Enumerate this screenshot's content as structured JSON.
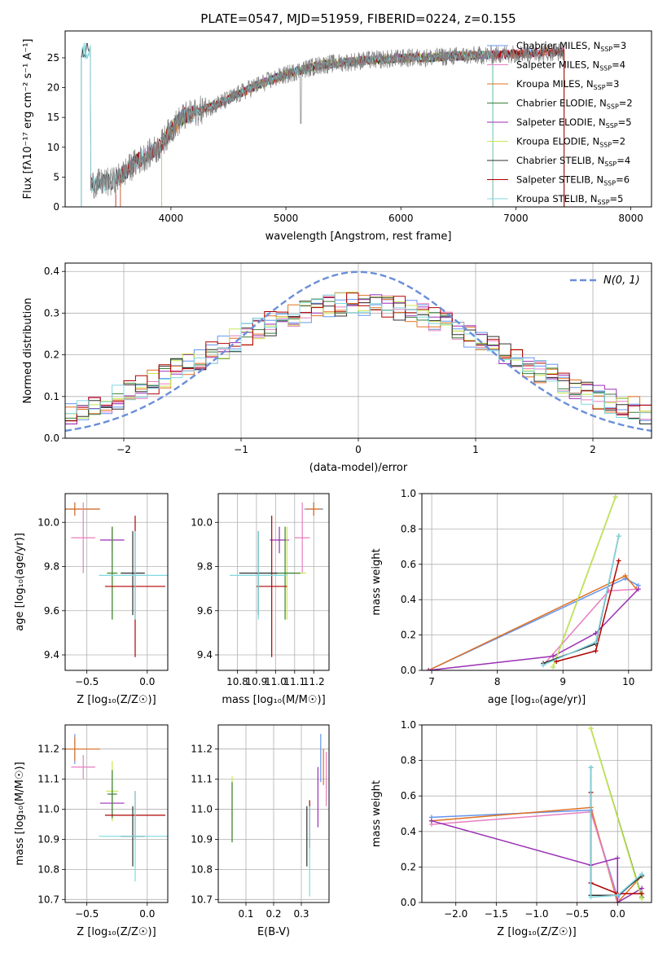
{
  "figure_title": "PLATE=0547, MJD=51959, FIBERID=0224, z=0.155",
  "colors": {
    "cm": "#6495ed",
    "sm": "#e87ec0",
    "km": "#e07020",
    "ce": "#3a7d3a",
    "se": "#9b2fb5",
    "ke": "#c8e850",
    "cs": "#303030",
    "ss": "#b00000",
    "ks": "#80d8e0",
    "spec": "#808080",
    "normal": "#6a8fd8",
    "grid": "#b0b0b0"
  },
  "chart_data": [
    {
      "id": "spectrum",
      "type": "line",
      "title": "PLATE=0547, MJD=51959, FIBERID=0224, z=0.155",
      "xlabel": "wavelength [Angstrom, rest frame]",
      "ylabel": "Flux [fλ10⁻¹⁷ erg cm⁻² s⁻¹ A⁻¹]",
      "xlim": [
        3080,
        8180
      ],
      "ylim": [
        0,
        29.5
      ],
      "xticks": [
        4000,
        5000,
        6000,
        7000,
        8000
      ],
      "yticks": [
        0,
        5,
        10,
        15,
        20,
        25
      ],
      "grid": false,
      "legend_position": "right",
      "data_range": [
        3300,
        7420
      ],
      "legend": [
        {
          "key": "cm",
          "label": "Chabrier MILES, N",
          "sub": "SSP",
          "suffix": "=3"
        },
        {
          "key": "sm",
          "label": "Salpeter MILES, N",
          "sub": "SSP",
          "suffix": "=4"
        },
        {
          "key": "km",
          "label": "Kroupa MILES, N",
          "sub": "SSP",
          "suffix": "=3"
        },
        {
          "key": "ce",
          "label": "Chabrier ELODIE, N",
          "sub": "SSP",
          "suffix": "=2"
        },
        {
          "key": "se",
          "label": "Salpeter ELODIE, N",
          "sub": "SSP",
          "suffix": "=5"
        },
        {
          "key": "ke",
          "label": "Kroupa ELODIE, N",
          "sub": "SSP",
          "suffix": "=2"
        },
        {
          "key": "cs",
          "label": "Chabrier STELIB, N",
          "sub": "SSP",
          "suffix": "=4"
        },
        {
          "key": "ss",
          "label": "Salpeter STELIB, N",
          "sub": "SSP",
          "suffix": "=6"
        },
        {
          "key": "ks",
          "label": "Kroupa STELIB, N",
          "sub": "SSP",
          "suffix": "=5"
        }
      ],
      "spectrum_anchors": [
        [
          3300,
          3.8
        ],
        [
          3500,
          4.2
        ],
        [
          3700,
          7.5
        ],
        [
          3900,
          10
        ],
        [
          4000,
          13
        ],
        [
          4100,
          15
        ],
        [
          4300,
          16.5
        ],
        [
          4500,
          18
        ],
        [
          4700,
          20
        ],
        [
          4900,
          21.5
        ],
        [
          5100,
          22.8
        ],
        [
          5300,
          23.8
        ],
        [
          5500,
          24.2
        ],
        [
          5700,
          24.6
        ],
        [
          5900,
          24.8
        ],
        [
          6100,
          25
        ],
        [
          6300,
          25.1
        ],
        [
          6500,
          25.3
        ],
        [
          6700,
          25.4
        ],
        [
          6900,
          25.6
        ],
        [
          7100,
          25.8
        ],
        [
          7300,
          26
        ],
        [
          7420,
          26
        ]
      ],
      "model_starts": {
        "cm": 3560,
        "sm": 3560,
        "km": 3560,
        "ce": 3920,
        "se": 3920,
        "ke": 3920,
        "cs": 3220,
        "ss": 3520,
        "ks": 3220
      },
      "model_ends": {
        "cm": 7420,
        "sm": 7420,
        "km": 7420,
        "ce": 6800,
        "se": 6800,
        "ke": 6800,
        "cs": 7420,
        "ss": 7420,
        "ks": 6800
      }
    },
    {
      "id": "residual_hist",
      "type": "histogram",
      "xlabel": "(data-model)/error",
      "ylabel": "Normed distribution",
      "xlim": [
        -2.5,
        2.5
      ],
      "ylim": [
        0,
        0.42
      ],
      "xticks": [
        -2,
        -1,
        0,
        1,
        2
      ],
      "yticks": [
        0.0,
        0.1,
        0.2,
        0.3,
        0.4
      ],
      "grid": true,
      "bin_width": 0.1,
      "legend": [
        {
          "key": "normal",
          "label": "N(0, 1)"
        }
      ],
      "legend_position": "top-right"
    },
    {
      "id": "age_vs_Z",
      "type": "errorbar",
      "xlabel": "Z [log₁₀(Z/Z☉)]",
      "ylabel": "age  [log₁₀(age/yr)]",
      "xlim": [
        -0.68,
        0.17
      ],
      "ylim": [
        9.33,
        10.13
      ],
      "xticks": [
        -0.5,
        0.0
      ],
      "yticks": [
        9.4,
        9.6,
        9.8,
        10.0
      ],
      "grid": true,
      "points": [
        {
          "key": "cm",
          "x": -0.6,
          "y": 10.06,
          "xerr": 0.2,
          "yerr": 0.03
        },
        {
          "key": "km",
          "x": -0.6,
          "y": 10.06,
          "xerr": 0.21,
          "yerr": 0.03
        },
        {
          "key": "sm",
          "x": -0.53,
          "y": 9.93,
          "xerr": 0.1,
          "yerr": 0.16
        },
        {
          "key": "se",
          "x": -0.29,
          "y": 9.92,
          "xerr": 0.1,
          "yerr": 0.06
        },
        {
          "key": "ke",
          "x": -0.29,
          "y": 9.77,
          "xerr": 0.05,
          "yerr": 0.21
        },
        {
          "key": "ce",
          "x": -0.29,
          "y": 9.77,
          "xerr": 0.04,
          "yerr": 0.21
        },
        {
          "key": "cs",
          "x": -0.12,
          "y": 9.77,
          "xerr": 0.1,
          "yerr": 0.19
        },
        {
          "key": "ss",
          "x": -0.1,
          "y": 9.71,
          "xerr": 0.25,
          "yerr": 0.32
        },
        {
          "key": "ks",
          "x": -0.1,
          "y": 9.76,
          "xerr": 0.3,
          "yerr": 0.2
        }
      ]
    },
    {
      "id": "age_vs_mass",
      "type": "errorbar",
      "xlabel": "mass [log₁₀(M/M☉)]",
      "ylabel": "",
      "xlim": [
        10.7,
        11.28
      ],
      "ylim": [
        9.33,
        10.13
      ],
      "xticks": [
        10.8,
        10.9,
        11.0,
        11.1,
        11.2
      ],
      "yticks": [
        9.4,
        9.6,
        9.8,
        10.0
      ],
      "grid": true,
      "points": [
        {
          "key": "cm",
          "x": 11.2,
          "y": 10.06,
          "xerr": 0.05,
          "yerr": 0.03
        },
        {
          "key": "km",
          "x": 11.2,
          "y": 10.06,
          "xerr": 0.04,
          "yerr": 0.03
        },
        {
          "key": "sm",
          "x": 11.14,
          "y": 9.93,
          "xerr": 0.04,
          "yerr": 0.16
        },
        {
          "key": "se",
          "x": 11.02,
          "y": 9.92,
          "xerr": 0.05,
          "yerr": 0.06
        },
        {
          "key": "ke",
          "x": 11.06,
          "y": 9.77,
          "xerr": 0.1,
          "yerr": 0.21
        },
        {
          "key": "ce",
          "x": 11.05,
          "y": 9.77,
          "xerr": 0.08,
          "yerr": 0.21
        },
        {
          "key": "cs",
          "x": 10.91,
          "y": 9.77,
          "xerr": 0.1,
          "yerr": 0.19
        },
        {
          "key": "ss",
          "x": 10.98,
          "y": 9.71,
          "xerr": 0.08,
          "yerr": 0.32
        },
        {
          "key": "ks",
          "x": 10.91,
          "y": 9.76,
          "xerr": 0.15,
          "yerr": 0.2
        }
      ]
    },
    {
      "id": "massweight_vs_age",
      "type": "line",
      "xlabel": "age  [log₁₀(age/yr)]",
      "ylabel": "mass weight",
      "xlim": [
        6.85,
        10.35
      ],
      "ylim": [
        0,
        1.0
      ],
      "xticks": [
        7,
        8,
        9,
        10
      ],
      "yticks": [
        0.0,
        0.2,
        0.4,
        0.6,
        0.8,
        1.0
      ],
      "grid": true,
      "series": [
        {
          "key": "cm",
          "x": [
            6.95,
            9.95,
            10.15
          ],
          "y": [
            0.0,
            0.52,
            0.48
          ]
        },
        {
          "key": "km",
          "x": [
            6.95,
            9.95,
            10.12
          ],
          "y": [
            0.0,
            0.535,
            0.46
          ]
        },
        {
          "key": "sm",
          "x": [
            8.7,
            9.7,
            10.15
          ],
          "y": [
            0.03,
            0.45,
            0.46
          ]
        },
        {
          "key": "se",
          "x": [
            6.95,
            8.85,
            9.5,
            10.15
          ],
          "y": [
            0.0,
            0.08,
            0.21,
            0.46
          ]
        },
        {
          "key": "ce",
          "x": [
            8.85,
            9.8
          ],
          "y": [
            0.02,
            0.98
          ]
        },
        {
          "key": "ke",
          "x": [
            8.85,
            9.8
          ],
          "y": [
            0.02,
            0.98
          ]
        },
        {
          "key": "cs",
          "x": [
            8.7,
            9.5,
            9.85
          ],
          "y": [
            0.04,
            0.15,
            0.76
          ]
        },
        {
          "key": "ss",
          "x": [
            8.9,
            9.5,
            9.85
          ],
          "y": [
            0.05,
            0.11,
            0.62
          ]
        },
        {
          "key": "ks",
          "x": [
            8.7,
            9.5,
            9.85
          ],
          "y": [
            0.03,
            0.16,
            0.76
          ]
        }
      ]
    },
    {
      "id": "mass_vs_Z",
      "type": "errorbar",
      "xlabel": "Z [log₁₀(Z/Z☉)]",
      "ylabel": "mass [log₁₀(M/M☉)]",
      "xlim": [
        -0.68,
        0.17
      ],
      "ylim": [
        10.69,
        11.28
      ],
      "xticks": [
        -0.5,
        0.0
      ],
      "yticks": [
        10.7,
        10.8,
        10.9,
        11.0,
        11.1,
        11.2
      ],
      "grid": true,
      "points": [
        {
          "key": "cm",
          "x": -0.6,
          "y": 11.2,
          "xerr": 0.2,
          "yerr": 0.05
        },
        {
          "key": "km",
          "x": -0.6,
          "y": 11.2,
          "xerr": 0.21,
          "yerr": 0.04
        },
        {
          "key": "sm",
          "x": -0.53,
          "y": 11.14,
          "xerr": 0.1,
          "yerr": 0.04
        },
        {
          "key": "se",
          "x": -0.29,
          "y": 11.02,
          "xerr": 0.1,
          "yerr": 0.05
        },
        {
          "key": "ke",
          "x": -0.29,
          "y": 11.06,
          "xerr": 0.05,
          "yerr": 0.1
        },
        {
          "key": "ce",
          "x": -0.29,
          "y": 11.05,
          "xerr": 0.04,
          "yerr": 0.08
        },
        {
          "key": "cs",
          "x": -0.12,
          "y": 10.91,
          "xerr": 0.1,
          "yerr": 0.1
        },
        {
          "key": "ss",
          "x": -0.1,
          "y": 10.98,
          "xerr": 0.25,
          "yerr": 0.08
        },
        {
          "key": "ks",
          "x": -0.1,
          "y": 10.91,
          "xerr": 0.3,
          "yerr": 0.15
        }
      ]
    },
    {
      "id": "mass_vs_EBV",
      "type": "errorbar",
      "xlabel": "E(B-V)",
      "ylabel": "",
      "xlim": [
        0.0,
        0.4
      ],
      "ylim": [
        10.69,
        11.28
      ],
      "xticks": [
        0.1,
        0.2,
        0.3
      ],
      "yticks": [
        10.7,
        10.8,
        10.9,
        11.0,
        11.1,
        11.2
      ],
      "grid": true,
      "points": [
        {
          "key": "ke",
          "x": 0.05,
          "y": 11.0,
          "xerr": 0.0,
          "yerr": 0.11
        },
        {
          "key": "ce",
          "x": 0.05,
          "y": 10.99,
          "xerr": 0.0,
          "yerr": 0.1
        },
        {
          "key": "cs",
          "x": 0.32,
          "y": 10.91,
          "xerr": 0.0,
          "yerr": 0.1
        },
        {
          "key": "ss",
          "x": 0.33,
          "y": 10.95,
          "xerr": 0.0,
          "yerr": 0.08
        },
        {
          "key": "ks",
          "x": 0.33,
          "y": 10.86,
          "xerr": 0.0,
          "yerr": 0.15
        },
        {
          "key": "se",
          "x": 0.36,
          "y": 11.04,
          "xerr": 0.0,
          "yerr": 0.1
        },
        {
          "key": "cm",
          "x": 0.37,
          "y": 11.17,
          "xerr": 0.0,
          "yerr": 0.08
        },
        {
          "key": "km",
          "x": 0.38,
          "y": 11.14,
          "xerr": 0.0,
          "yerr": 0.06
        },
        {
          "key": "sm",
          "x": 0.39,
          "y": 11.1,
          "xerr": 0.0,
          "yerr": 0.09
        }
      ]
    },
    {
      "id": "massweight_vs_Z",
      "type": "line",
      "xlabel": "Z [log₁₀(Z/Z☉)]",
      "ylabel": "mass weight",
      "xlim": [
        -2.42,
        0.42
      ],
      "ylim": [
        0,
        1.0
      ],
      "xticks": [
        -2.0,
        -1.5,
        -1.0,
        -0.5,
        0.0
      ],
      "yticks": [
        0.0,
        0.2,
        0.4,
        0.6,
        0.8,
        1.0
      ],
      "grid": true,
      "series": [
        {
          "key": "cm",
          "x": [
            -2.3,
            -0.33,
            0.0,
            0.3
          ],
          "y": [
            0.48,
            0.52,
            0.03,
            0.16
          ]
        },
        {
          "key": "km",
          "x": [
            -2.3,
            -0.33,
            0.0,
            0.3
          ],
          "y": [
            0.46,
            0.535,
            0.0,
            0.15
          ]
        },
        {
          "key": "sm",
          "x": [
            -2.3,
            -0.33,
            0.0
          ],
          "y": [
            0.44,
            0.51,
            0.02
          ]
        },
        {
          "key": "se",
          "x": [
            -2.3,
            -0.33,
            0.0,
            0.0,
            0.3
          ],
          "y": [
            0.46,
            0.21,
            0.25,
            0.0,
            0.08
          ]
        },
        {
          "key": "ce",
          "x": [
            -0.33,
            0.3
          ],
          "y": [
            0.98,
            0.03
          ]
        },
        {
          "key": "ke",
          "x": [
            -0.33,
            0.3
          ],
          "y": [
            0.98,
            0.02
          ]
        },
        {
          "key": "cs",
          "x": [
            -0.33,
            -0.33,
            0.0,
            0.3
          ],
          "y": [
            0.76,
            0.04,
            0.04,
            0.15
          ]
        },
        {
          "key": "ss",
          "x": [
            -0.33,
            -0.33,
            0.0,
            0.3
          ],
          "y": [
            0.62,
            0.11,
            0.05,
            0.05
          ]
        },
        {
          "key": "ks",
          "x": [
            -0.33,
            -0.33,
            0.0,
            0.3
          ],
          "y": [
            0.76,
            0.03,
            0.04,
            0.16
          ]
        }
      ]
    }
  ]
}
